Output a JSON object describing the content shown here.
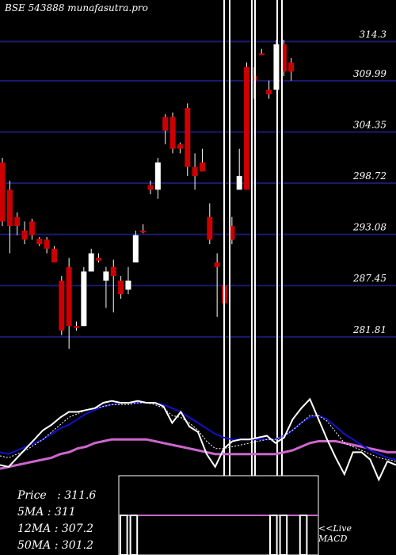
{
  "header": {
    "title": "BSE 543888  munafasutra.pro"
  },
  "stats": {
    "price_label": "Price",
    "price_value": "311.6",
    "ma5_label": "5MA",
    "ma5_value": "311",
    "ma12_label": "12MA",
    "ma12_value": "307.2",
    "ma50_label": "50MA",
    "ma50_value": "301.2"
  },
  "macd_note": {
    "line1": "<<Live",
    "line2": "MACD"
  },
  "colors": {
    "background": "#000000",
    "grid": "#1a1a6e",
    "up": "#ffffff",
    "down": "#cc0000",
    "ma_fast": "#1111cc",
    "ma_slow": "#cc66cc",
    "price_line": "#ffffff"
  },
  "chart_data": {
    "type": "candlestick",
    "ylim": [
      277,
      318
    ],
    "y_ticks": [
      "314.3",
      "309.99",
      "304.35",
      "298.72",
      "293.08",
      "287.45",
      "281.81"
    ],
    "y_tick_values": [
      314.3,
      309.99,
      304.35,
      298.72,
      293.08,
      287.45,
      281.81
    ],
    "candles": [
      {
        "o": 301,
        "h": 301.5,
        "c": 294.5,
        "l": 294
      },
      {
        "o": 298,
        "h": 299,
        "c": 294,
        "l": 291
      },
      {
        "o": 295,
        "h": 295.5,
        "c": 294,
        "l": 293
      },
      {
        "o": 293.5,
        "h": 294.5,
        "c": 292.5,
        "l": 292
      },
      {
        "o": 294.5,
        "h": 294.8,
        "c": 293,
        "l": 292.5
      },
      {
        "o": 292.6,
        "h": 292.8,
        "c": 292,
        "l": 291.8
      },
      {
        "o": 292.5,
        "h": 292.8,
        "c": 291.5,
        "l": 291
      },
      {
        "o": 291.5,
        "h": 291.8,
        "c": 290,
        "l": 290
      },
      {
        "o": 288,
        "h": 288.5,
        "c": 282.5,
        "l": 282
      },
      {
        "o": 289.5,
        "h": 290.5,
        "c": 283,
        "l": 280.5
      },
      {
        "o": 283,
        "h": 283.5,
        "c": 282.8,
        "l": 282.5
      },
      {
        "o": 283,
        "h": 289.5,
        "c": 289,
        "l": 283
      },
      {
        "o": 289,
        "h": 291.5,
        "c": 291,
        "l": 289
      },
      {
        "o": 290.5,
        "h": 291,
        "c": 290.2,
        "l": 290
      },
      {
        "o": 288,
        "h": 289.5,
        "c": 289,
        "l": 285
      },
      {
        "o": 289.5,
        "h": 290.3,
        "c": 288.5,
        "l": 284.5
      },
      {
        "o": 288,
        "h": 288.5,
        "c": 286.5,
        "l": 286
      },
      {
        "o": 287,
        "h": 289.5,
        "c": 288,
        "l": 286.5
      },
      {
        "o": 290,
        "h": 293.5,
        "c": 293,
        "l": 290
      },
      {
        "o": 293.5,
        "h": 294.2,
        "c": 293.3,
        "l": 293.2
      },
      {
        "o": 298.5,
        "h": 299,
        "c": 298,
        "l": 297.5
      },
      {
        "o": 298,
        "h": 301.5,
        "c": 301,
        "l": 297
      },
      {
        "o": 306,
        "h": 306.3,
        "c": 304.5,
        "l": 303
      },
      {
        "o": 306,
        "h": 306.5,
        "c": 302.5,
        "l": 302
      },
      {
        "o": 303,
        "h": 303.2,
        "c": 302.5,
        "l": 302
      },
      {
        "o": 307,
        "h": 307.5,
        "c": 300.5,
        "l": 299.5
      },
      {
        "o": 300.5,
        "h": 302,
        "c": 299.5,
        "l": 298
      },
      {
        "o": 301,
        "h": 302.5,
        "c": 300,
        "l": 300
      },
      {
        "o": 295,
        "h": 296.5,
        "c": 292.5,
        "l": 292
      },
      {
        "o": 290,
        "h": 291,
        "c": 289.5,
        "l": 284
      },
      {
        "o": 287.5,
        "h": 288,
        "c": 285.5,
        "l": 285
      },
      {
        "o": 294,
        "h": 295,
        "c": 292.5,
        "l": 292
      },
      {
        "o": 298,
        "h": 302.5,
        "c": 299.5,
        "l": 298
      },
      {
        "o": 311.5,
        "h": 312,
        "c": 298,
        "l": 298
      },
      {
        "o": 310.5,
        "h": 311.5,
        "c": 310,
        "l": 308
      },
      {
        "o": 313,
        "h": 313.5,
        "c": 312.8,
        "l": 312.8
      },
      {
        "o": 309,
        "h": 310,
        "c": 308.5,
        "l": 308
      },
      {
        "o": 309,
        "h": 314.5,
        "c": 314,
        "l": 309
      },
      {
        "o": 314,
        "h": 314.5,
        "c": 311,
        "l": 310.5
      },
      {
        "o": 312,
        "h": 312.5,
        "c": 311,
        "l": 310
      }
    ],
    "highlight_columns": [
      35,
      40
    ],
    "lower_panel": {
      "price_line": [
        0.08,
        0.07,
        0.12,
        0.17,
        0.22,
        0.27,
        0.3,
        0.34,
        0.37,
        0.37,
        0.38,
        0.39,
        0.42,
        0.43,
        0.42,
        0.42,
        0.43,
        0.42,
        0.42,
        0.4,
        0.31,
        0.37,
        0.29,
        0.26,
        0.14,
        0.07,
        0.17,
        0.21,
        0.22,
        0.22,
        0.23,
        0.24,
        0.2,
        0.23,
        0.33,
        0.39,
        0.44,
        0.33,
        0.22,
        0.12,
        0.03,
        0.15,
        0.15,
        0.11,
        0.0,
        0.1,
        0.08
      ],
      "ma_fast": [
        0.15,
        0.14,
        0.16,
        0.18,
        0.2,
        0.22,
        0.25,
        0.28,
        0.3,
        0.33,
        0.36,
        0.38,
        0.4,
        0.41,
        0.42,
        0.42,
        0.42,
        0.42,
        0.42,
        0.41,
        0.39,
        0.37,
        0.34,
        0.31,
        0.28,
        0.25,
        0.23,
        0.22,
        0.22,
        0.22,
        0.22,
        0.22,
        0.22,
        0.24,
        0.27,
        0.31,
        0.34,
        0.35,
        0.33,
        0.29,
        0.25,
        0.22,
        0.19,
        0.16,
        0.14,
        0.12,
        0.11
      ],
      "ma_slow": [
        0.06,
        0.07,
        0.08,
        0.09,
        0.1,
        0.11,
        0.12,
        0.14,
        0.15,
        0.17,
        0.18,
        0.2,
        0.21,
        0.22,
        0.22,
        0.22,
        0.22,
        0.22,
        0.21,
        0.2,
        0.19,
        0.18,
        0.17,
        0.16,
        0.15,
        0.14,
        0.14,
        0.14,
        0.14,
        0.14,
        0.14,
        0.14,
        0.14,
        0.15,
        0.16,
        0.18,
        0.2,
        0.21,
        0.21,
        0.21,
        0.2,
        0.19,
        0.18,
        0.17,
        0.16,
        0.15,
        0.15
      ],
      "ma_dotted": [
        0.13,
        0.12,
        0.14,
        0.16,
        0.19,
        0.22,
        0.26,
        0.3,
        0.34,
        0.36,
        0.38,
        0.39,
        0.4,
        0.41,
        0.41,
        0.41,
        0.42,
        0.42,
        0.41,
        0.39,
        0.35,
        0.34,
        0.31,
        0.27,
        0.21,
        0.17,
        0.17,
        0.18,
        0.19,
        0.2,
        0.21,
        0.22,
        0.22,
        0.24,
        0.27,
        0.31,
        0.35,
        0.35,
        0.32,
        0.26,
        0.2,
        0.18,
        0.16,
        0.14,
        0.12,
        0.11,
        0.1
      ]
    },
    "macd_bars": [
      1,
      1,
      0,
      0,
      0,
      0,
      0,
      0,
      0,
      0,
      0,
      0,
      0,
      0,
      0,
      1,
      1,
      0,
      1,
      0
    ]
  }
}
